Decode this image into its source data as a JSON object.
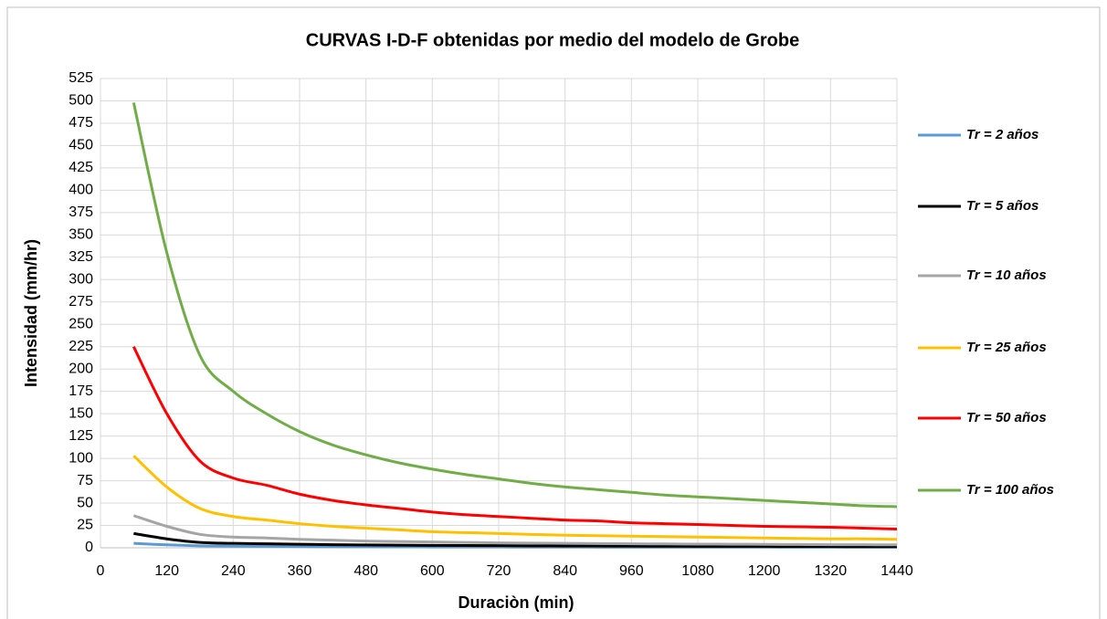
{
  "chart_data": {
    "type": "line",
    "title": "CURVAS I-D-F obtenidas  por medio  del modelo  de Grobe",
    "x_label": "Duraciòn (min)",
    "y_label": "Intensidad (mm/hr)",
    "x": [
      60,
      120,
      180,
      240,
      300,
      360,
      420,
      480,
      540,
      600,
      660,
      720,
      780,
      840,
      900,
      960,
      1020,
      1080,
      1140,
      1200,
      1260,
      1320,
      1380,
      1440
    ],
    "series": [
      {
        "name": "Tr = 2 años",
        "color": "#5b9bd5",
        "values": [
          5,
          3.3,
          2.2,
          1.8,
          1.6,
          1.4,
          1.2,
          1.1,
          1,
          0.95,
          0.9,
          0.85,
          0.8,
          0.75,
          0.7,
          0.7,
          0.65,
          0.6,
          0.6,
          0.58,
          0.55,
          0.53,
          0.5,
          0.5
        ]
      },
      {
        "name": "Tr = 5 años",
        "color": "#000000",
        "values": [
          16,
          10,
          6,
          5,
          4.5,
          4,
          3.5,
          3.2,
          3,
          2.7,
          2.5,
          2.4,
          2.2,
          2.1,
          2,
          1.9,
          1.8,
          1.7,
          1.7,
          1.6,
          1.5,
          1.5,
          1.4,
          1.4
        ]
      },
      {
        "name": "Tr = 10 años",
        "color": "#a5a5a5",
        "values": [
          36,
          24,
          15,
          12,
          11,
          9.5,
          8.5,
          7.5,
          7,
          6.5,
          6,
          5.5,
          5.2,
          5,
          4.7,
          4.5,
          4.3,
          4.1,
          4,
          3.8,
          3.7,
          3.5,
          3.4,
          3.3
        ]
      },
      {
        "name": "Tr = 25 años",
        "color": "#ffc000",
        "values": [
          103,
          68,
          44,
          35,
          31,
          27,
          24,
          22,
          20,
          18,
          17,
          16,
          15,
          14,
          13.5,
          13,
          12.5,
          12,
          11.5,
          11,
          10.5,
          10,
          10,
          9.5
        ]
      },
      {
        "name": "Tr = 50 años",
        "color": "#ff0000",
        "values": [
          225,
          150,
          97,
          78,
          70,
          60,
          53,
          48,
          44,
          40,
          37,
          35,
          33,
          31,
          30,
          28,
          27,
          26,
          25,
          24,
          23.5,
          23,
          22,
          21
        ]
      },
      {
        "name": "Tr = 100 años",
        "color": "#70ad47",
        "values": [
          498,
          330,
          215,
          175,
          150,
          130,
          115,
          104,
          95,
          88,
          82,
          77,
          72,
          68,
          65,
          62,
          59,
          57,
          55,
          53,
          51,
          49,
          47,
          46
        ]
      }
    ],
    "xlim": [
      0,
      1440
    ],
    "xticks": [
      0,
      120,
      240,
      360,
      480,
      600,
      720,
      840,
      960,
      1080,
      1200,
      1320,
      1440
    ],
    "ylim": [
      0,
      525
    ],
    "yticks": [
      0,
      25,
      50,
      75,
      100,
      125,
      150,
      175,
      200,
      225,
      250,
      275,
      300,
      325,
      350,
      375,
      400,
      425,
      450,
      475,
      500,
      525
    ],
    "grid": true,
    "legend": "right"
  }
}
